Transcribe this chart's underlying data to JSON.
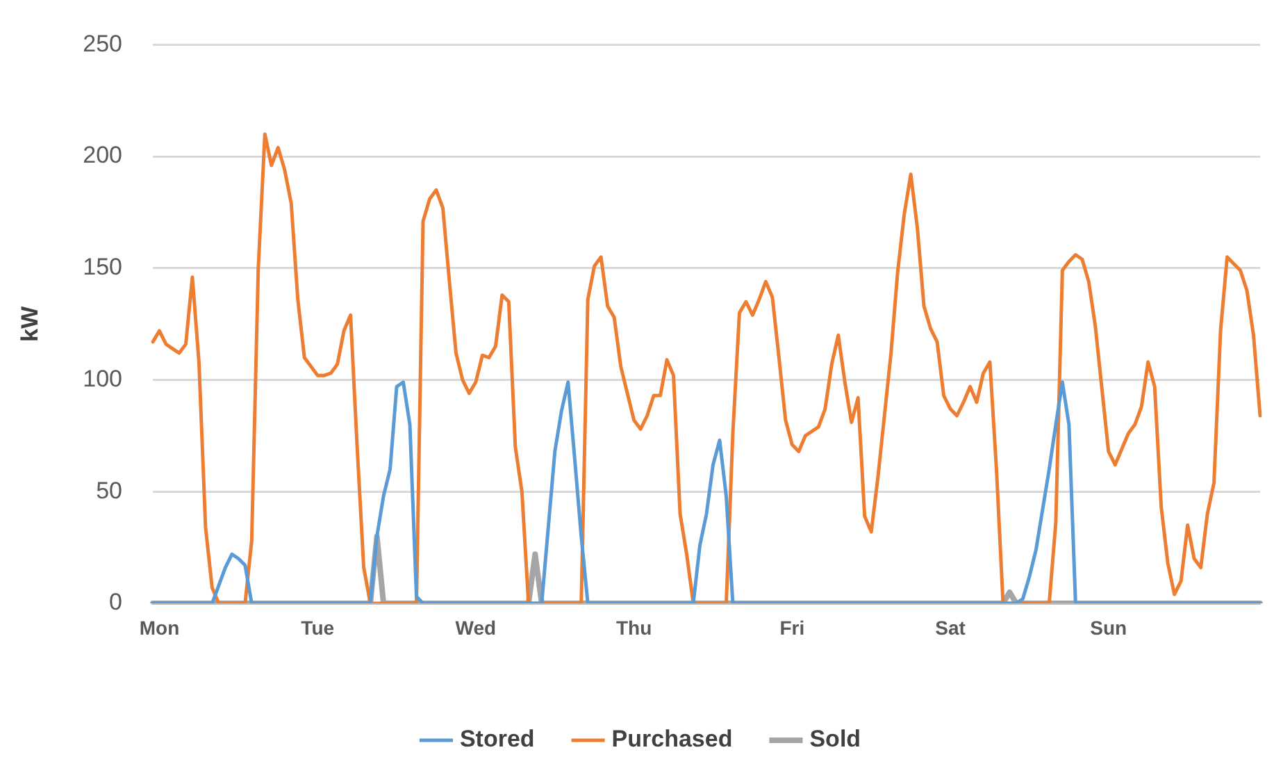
{
  "chart_data": {
    "type": "line",
    "ylabel": "kW",
    "ylim": [
      0,
      250
    ],
    "yticks": [
      0,
      50,
      100,
      150,
      200,
      250
    ],
    "categories": [
      null,
      "Mon",
      null,
      null,
      null,
      null,
      null,
      null,
      null,
      null,
      null,
      null,
      null,
      null,
      null,
      null,
      null,
      null,
      null,
      null,
      null,
      null,
      null,
      null,
      null,
      "Tue",
      null,
      null,
      null,
      null,
      null,
      null,
      null,
      null,
      null,
      null,
      null,
      null,
      null,
      null,
      null,
      null,
      null,
      null,
      null,
      null,
      null,
      null,
      null,
      "Wed",
      null,
      null,
      null,
      null,
      null,
      null,
      null,
      null,
      null,
      null,
      null,
      null,
      null,
      null,
      null,
      null,
      null,
      null,
      null,
      null,
      null,
      null,
      null,
      "Thu",
      null,
      null,
      null,
      null,
      null,
      null,
      null,
      null,
      null,
      null,
      null,
      null,
      null,
      null,
      null,
      null,
      null,
      null,
      null,
      null,
      null,
      null,
      null,
      "Fri",
      null,
      null,
      null,
      null,
      null,
      null,
      null,
      null,
      null,
      null,
      null,
      null,
      null,
      null,
      null,
      null,
      null,
      null,
      null,
      null,
      null,
      null,
      null,
      "Sat",
      null,
      null,
      null,
      null,
      null,
      null,
      null,
      null,
      null,
      null,
      null,
      null,
      null,
      null,
      null,
      null,
      null,
      null,
      null,
      null,
      null,
      null,
      null,
      "Sun",
      null,
      null,
      null,
      null,
      null,
      null,
      null,
      null,
      null,
      null,
      null,
      null,
      null,
      null,
      null,
      null,
      null,
      null,
      null,
      null,
      null,
      null,
      null
    ],
    "grid": "y",
    "legend": "bottom",
    "marker": "none",
    "line_style": "solid",
    "series": [
      {
        "name": "Stored",
        "color": "#5b9bd5",
        "values": [
          0,
          0,
          0,
          0,
          0,
          0,
          0,
          0,
          0,
          0,
          8,
          16,
          22,
          20,
          17,
          0,
          0,
          0,
          0,
          0,
          0,
          0,
          0,
          0,
          0,
          0,
          0,
          0,
          0,
          0,
          0,
          0,
          0,
          0,
          30,
          48,
          60,
          97,
          99,
          80,
          3,
          0,
          0,
          0,
          0,
          0,
          0,
          0,
          0,
          0,
          0,
          0,
          0,
          0,
          0,
          0,
          0,
          0,
          0,
          0,
          34,
          68,
          86,
          99,
          65,
          30,
          0,
          0,
          0,
          0,
          0,
          0,
          0,
          0,
          0,
          0,
          0,
          0,
          0,
          0,
          0,
          0,
          0,
          26,
          40,
          62,
          73,
          48,
          0,
          0,
          0,
          0,
          0,
          0,
          0,
          0,
          0,
          0,
          0,
          0,
          0,
          0,
          0,
          0,
          0,
          0,
          0,
          0,
          0,
          0,
          0,
          0,
          0,
          0,
          0,
          0,
          0,
          0,
          0,
          0,
          0,
          0,
          0,
          0,
          0,
          0,
          0,
          0,
          0,
          0,
          0,
          0,
          2,
          12,
          24,
          42,
          60,
          80,
          99,
          80,
          0,
          0,
          0,
          0,
          0,
          0,
          0,
          0,
          0,
          0,
          0,
          0,
          0,
          0,
          0,
          0,
          0,
          0,
          0,
          0,
          0,
          0,
          0,
          0,
          0,
          0,
          0,
          0,
          0
        ]
      },
      {
        "name": "Purchased",
        "color": "#ed7d31",
        "values": [
          117,
          122,
          116,
          114,
          112,
          116,
          146,
          108,
          34,
          7,
          0,
          0,
          0,
          0,
          0,
          28,
          150,
          210,
          196,
          204,
          194,
          179,
          136,
          110,
          106,
          102,
          102,
          103,
          107,
          122,
          129,
          70,
          16,
          0,
          0,
          0,
          0,
          0,
          0,
          0,
          0,
          171,
          181,
          185,
          177,
          144,
          112,
          100,
          94,
          99,
          111,
          110,
          115,
          138,
          135,
          70,
          50,
          0,
          0,
          0,
          0,
          0,
          0,
          0,
          0,
          0,
          136,
          151,
          155,
          133,
          128,
          106,
          94,
          82,
          78,
          84,
          93,
          93,
          109,
          102,
          40,
          22,
          0,
          0,
          0,
          0,
          0,
          0,
          76,
          130,
          135,
          129,
          136,
          144,
          137,
          110,
          82,
          71,
          68,
          75,
          77,
          79,
          87,
          107,
          120,
          99,
          81,
          92,
          39,
          32,
          56,
          84,
          112,
          148,
          174,
          192,
          168,
          133,
          123,
          117,
          93,
          87,
          84,
          90,
          97,
          90,
          103,
          108,
          60,
          0,
          0,
          0,
          0,
          0,
          0,
          0,
          0,
          36,
          149,
          153,
          156,
          154,
          144,
          124,
          96,
          68,
          62,
          69,
          76,
          80,
          88,
          108,
          97,
          43,
          18,
          4,
          10,
          35,
          20,
          16,
          40,
          54,
          122,
          155,
          152,
          149,
          140,
          120,
          84
        ]
      },
      {
        "name": "Sold",
        "color": "#a5a5a5",
        "values": [
          0,
          0,
          0,
          0,
          0,
          0,
          0,
          0,
          0,
          0,
          0,
          0,
          0,
          0,
          0,
          0,
          0,
          0,
          0,
          0,
          0,
          0,
          0,
          0,
          0,
          0,
          0,
          0,
          0,
          0,
          0,
          0,
          0,
          0,
          30,
          0,
          0,
          0,
          0,
          0,
          0,
          0,
          0,
          0,
          0,
          0,
          0,
          0,
          0,
          0,
          0,
          0,
          0,
          0,
          0,
          0,
          0,
          0,
          22,
          0,
          0,
          0,
          0,
          0,
          0,
          0,
          0,
          0,
          0,
          0,
          0,
          0,
          0,
          0,
          0,
          0,
          0,
          0,
          0,
          0,
          0,
          0,
          0,
          0,
          0,
          0,
          0,
          0,
          0,
          0,
          0,
          0,
          0,
          0,
          0,
          0,
          0,
          0,
          0,
          0,
          0,
          0,
          0,
          0,
          0,
          0,
          0,
          0,
          0,
          0,
          0,
          0,
          0,
          0,
          0,
          0,
          0,
          0,
          0,
          0,
          0,
          0,
          0,
          0,
          0,
          0,
          0,
          0,
          0,
          0,
          5,
          0,
          0,
          0,
          0,
          0,
          0,
          0,
          0,
          0,
          0,
          0,
          0,
          0,
          0,
          0,
          0,
          0,
          0,
          0,
          0,
          0,
          0,
          0,
          0,
          0,
          0,
          0,
          0,
          0,
          0,
          0,
          0,
          0,
          0,
          0,
          0,
          0,
          0
        ]
      }
    ]
  }
}
